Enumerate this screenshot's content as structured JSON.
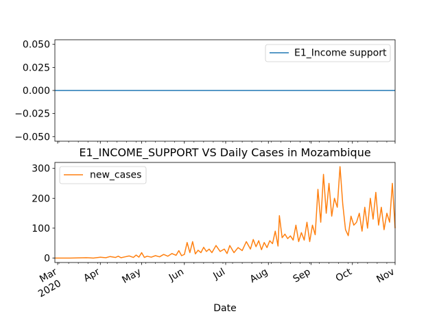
{
  "chart_data": [
    {
      "type": "line",
      "title": "",
      "xlabel": "",
      "ylabel": "",
      "ylim": [
        -0.055,
        0.055
      ],
      "yticks": [
        -0.05,
        -0.025,
        0.0,
        0.025,
        0.05
      ],
      "ytick_labels": [
        "−0.050",
        "−0.025",
        "0.000",
        "0.025",
        "0.050"
      ],
      "xlim": [
        "2020-02-28",
        "2020-11-01"
      ],
      "grid": false,
      "legend": "upper right",
      "series": [
        {
          "name": "E1_Income support",
          "color": "#1f77b4",
          "x": [
            "2020-02-28",
            "2020-11-01"
          ],
          "values": [
            0,
            0
          ]
        }
      ]
    },
    {
      "type": "line",
      "title": "E1_INCOME_SUPPORT VS Daily Cases in Mozambique",
      "xlabel": "Date",
      "ylabel": "",
      "ylim": [
        -15,
        320
      ],
      "yticks": [
        0,
        100,
        200,
        300
      ],
      "ytick_labels": [
        "0",
        "100",
        "200",
        "300"
      ],
      "xlim": [
        "2020-02-28",
        "2020-11-01"
      ],
      "xtick_dates": [
        "2020-03-01",
        "2020-04-01",
        "2020-05-01",
        "2020-06-01",
        "2020-07-01",
        "2020-08-01",
        "2020-09-01",
        "2020-10-01",
        "2020-11-01"
      ],
      "xtick_labels": [
        "Mar",
        "Apr",
        "May",
        "Jun",
        "Jul",
        "Aug",
        "Sep",
        "Oct",
        "Nov"
      ],
      "xtick_year": "2020",
      "grid": false,
      "legend": "upper left",
      "series": [
        {
          "name": "new_cases",
          "color": "#ff7f0e",
          "x": [
            "2020-02-28",
            "2020-03-10",
            "2020-03-22",
            "2020-03-27",
            "2020-04-01",
            "2020-04-05",
            "2020-04-08",
            "2020-04-12",
            "2020-04-14",
            "2020-04-16",
            "2020-04-19",
            "2020-04-22",
            "2020-04-25",
            "2020-04-27",
            "2020-04-29",
            "2020-05-01",
            "2020-05-03",
            "2020-05-05",
            "2020-05-08",
            "2020-05-11",
            "2020-05-14",
            "2020-05-17",
            "2020-05-20",
            "2020-05-23",
            "2020-05-26",
            "2020-05-28",
            "2020-05-30",
            "2020-06-01",
            "2020-06-03",
            "2020-06-05",
            "2020-06-07",
            "2020-06-09",
            "2020-06-11",
            "2020-06-13",
            "2020-06-15",
            "2020-06-17",
            "2020-06-19",
            "2020-06-21",
            "2020-06-24",
            "2020-06-27",
            "2020-06-30",
            "2020-07-02",
            "2020-07-04",
            "2020-07-07",
            "2020-07-10",
            "2020-07-13",
            "2020-07-16",
            "2020-07-19",
            "2020-07-21",
            "2020-07-23",
            "2020-07-25",
            "2020-07-27",
            "2020-07-29",
            "2020-07-31",
            "2020-08-02",
            "2020-08-04",
            "2020-08-06",
            "2020-08-08",
            "2020-08-09",
            "2020-08-11",
            "2020-08-13",
            "2020-08-15",
            "2020-08-17",
            "2020-08-19",
            "2020-08-21",
            "2020-08-23",
            "2020-08-25",
            "2020-08-27",
            "2020-08-29",
            "2020-08-31",
            "2020-09-02",
            "2020-09-04",
            "2020-09-06",
            "2020-09-08",
            "2020-09-10",
            "2020-09-12",
            "2020-09-14",
            "2020-09-16",
            "2020-09-18",
            "2020-09-20",
            "2020-09-22",
            "2020-09-24",
            "2020-09-26",
            "2020-09-28",
            "2020-09-30",
            "2020-10-02",
            "2020-10-04",
            "2020-10-06",
            "2020-10-08",
            "2020-10-10",
            "2020-10-12",
            "2020-10-14",
            "2020-10-16",
            "2020-10-18",
            "2020-10-20",
            "2020-10-22",
            "2020-10-24",
            "2020-10-26",
            "2020-10-28",
            "2020-10-30",
            "2020-11-01"
          ],
          "values": [
            0,
            0,
            1,
            0,
            3,
            1,
            5,
            2,
            6,
            1,
            4,
            7,
            2,
            10,
            3,
            18,
            2,
            6,
            3,
            8,
            4,
            12,
            6,
            15,
            9,
            25,
            8,
            12,
            52,
            18,
            55,
            14,
            26,
            18,
            36,
            22,
            30,
            18,
            42,
            22,
            30,
            15,
            42,
            18,
            35,
            25,
            55,
            30,
            62,
            38,
            58,
            28,
            52,
            35,
            58,
            48,
            90,
            40,
            142,
            68,
            80,
            65,
            74,
            60,
            110,
            55,
            85,
            60,
            120,
            55,
            110,
            78,
            230,
            120,
            280,
            150,
            250,
            140,
            200,
            170,
            306,
            180,
            95,
            75,
            140,
            110,
            120,
            150,
            90,
            170,
            100,
            200,
            130,
            220,
            110,
            170,
            95,
            150,
            120,
            250,
            100
          ]
        }
      ]
    }
  ]
}
